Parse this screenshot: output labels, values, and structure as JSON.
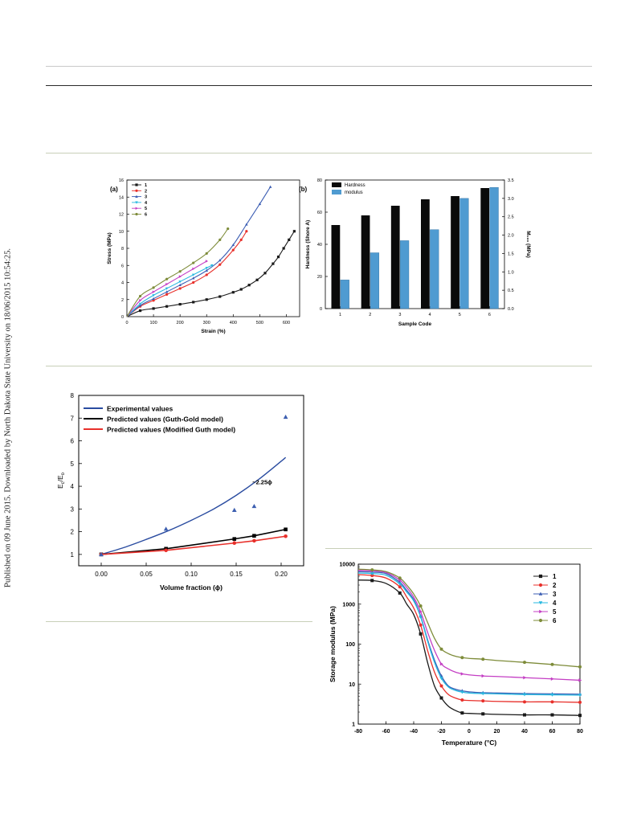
{
  "side_note": "Published on 09 June 2015. Downloaded by North Dakota State University on 18/06/2015 10:54:25.",
  "colors": {
    "s1": "#1a1a1a",
    "s2": "#e8302b",
    "s3": "#3b5db3",
    "s4": "#27b8e0",
    "s5": "#c43fc4",
    "s6": "#7e8c3a",
    "hardness": "#0a0a0a",
    "modulus": "#4f9bd1",
    "experimental": "#2a4ca0",
    "guth_gold": "#000000",
    "modified_guth": "#e8302b",
    "triangle": "#3d5fb0"
  },
  "chart_data": [
    {
      "id": "a",
      "type": "line",
      "panel_label": "(a)",
      "xlabel": "Strain (%)",
      "ylabel": "Stress (MPa)",
      "xlim": [
        0,
        650
      ],
      "ylim": [
        0,
        16
      ],
      "xticks": [
        0,
        100,
        200,
        300,
        400,
        500,
        600
      ],
      "yticks": [
        0,
        2,
        4,
        6,
        8,
        10,
        12,
        14,
        16
      ],
      "legend_position": "top-left",
      "series": [
        {
          "name": "1",
          "color_key": "s1",
          "marker": "square",
          "x": [
            0,
            50,
            100,
            150,
            200,
            250,
            300,
            350,
            400,
            430,
            460,
            490,
            520,
            550,
            570,
            590,
            610,
            630
          ],
          "y": [
            0,
            0.7,
            0.95,
            1.2,
            1.45,
            1.7,
            2.0,
            2.35,
            2.85,
            3.2,
            3.7,
            4.3,
            5.1,
            6.2,
            7.0,
            8.0,
            9.0,
            10.0
          ]
        },
        {
          "name": "2",
          "color_key": "s2",
          "marker": "circle",
          "x": [
            0,
            50,
            100,
            150,
            200,
            250,
            300,
            350,
            400,
            430,
            450
          ],
          "y": [
            0,
            1.2,
            1.9,
            2.6,
            3.3,
            4.0,
            4.9,
            6.1,
            7.8,
            9.0,
            10.0
          ]
        },
        {
          "name": "3",
          "color_key": "s3",
          "marker": "triangle-up",
          "x": [
            0,
            50,
            100,
            150,
            200,
            250,
            300,
            350,
            400,
            450,
            500,
            540
          ],
          "y": [
            0,
            1.3,
            2.1,
            2.9,
            3.7,
            4.5,
            5.4,
            6.6,
            8.4,
            10.8,
            13.2,
            15.2
          ]
        },
        {
          "name": "4",
          "color_key": "s4",
          "marker": "triangle-down",
          "x": [
            0,
            50,
            100,
            150,
            200,
            250,
            300,
            320
          ],
          "y": [
            0,
            1.5,
            2.5,
            3.3,
            4.1,
            4.9,
            5.7,
            6.0
          ]
        },
        {
          "name": "5",
          "color_key": "s5",
          "marker": "triangle-right",
          "x": [
            0,
            50,
            100,
            150,
            200,
            250,
            300
          ],
          "y": [
            0,
            1.9,
            2.9,
            3.8,
            4.7,
            5.6,
            6.5
          ]
        },
        {
          "name": "6",
          "color_key": "s6",
          "marker": "circle",
          "x": [
            0,
            50,
            100,
            150,
            200,
            250,
            300,
            350,
            380
          ],
          "y": [
            0,
            2.4,
            3.4,
            4.4,
            5.3,
            6.3,
            7.4,
            9.0,
            10.3
          ]
        }
      ]
    },
    {
      "id": "b",
      "type": "bar",
      "panel_label": "(b)",
      "xlabel": "Sample Code",
      "ylabel": "Hardness (Shore A)",
      "ylabel_right": "M₁₀₀ (MPa)",
      "categories": [
        "1",
        "2",
        "3",
        "4",
        "5",
        "6"
      ],
      "ylim": [
        0,
        80
      ],
      "ylim_right": [
        0,
        3.5
      ],
      "yticks": [
        0,
        20,
        40,
        60,
        80
      ],
      "yticks_right": [
        0.0,
        0.5,
        1.0,
        1.5,
        2.0,
        2.5,
        3.0,
        3.5
      ],
      "legend_position": "top-left",
      "series": [
        {
          "name": "Hardness",
          "color_key": "hardness",
          "axis": "left",
          "values": [
            52,
            58,
            64,
            68,
            70,
            75
          ]
        },
        {
          "name": "modulus",
          "color_key": "modulus",
          "axis": "right",
          "values": [
            0.78,
            1.52,
            1.85,
            2.15,
            3.0,
            3.3
          ]
        }
      ]
    },
    {
      "id": "c",
      "type": "line",
      "xlabel": "Volume fraction (ϕ)",
      "ylabel": "Ec/Eo",
      "ylabel_main": "E",
      "ylabel_sub1": "c",
      "ylabel_mid": "/E",
      "ylabel_sub2": "o",
      "xlim": [
        -0.025,
        0.225
      ],
      "ylim": [
        0.5,
        8
      ],
      "xticks": [
        0.0,
        0.05,
        0.1,
        0.15,
        0.2
      ],
      "xtick_labels": [
        "0.00",
        "0.05",
        "0.10",
        "0.15",
        "0.20"
      ],
      "yticks": [
        1,
        2,
        3,
        4,
        5,
        6,
        7,
        8
      ],
      "legend_position": "top-left",
      "annotation": "~2.25ϕ",
      "series": [
        {
          "name": "Experimental values",
          "color_key": "experimental",
          "kind": "curve",
          "x": [
            0,
            0.025,
            0.05,
            0.075,
            0.1,
            0.125,
            0.15,
            0.175,
            0.2,
            0.205
          ],
          "y": [
            1.0,
            1.3,
            1.66,
            2.05,
            2.5,
            3.0,
            3.6,
            4.3,
            5.1,
            5.27
          ]
        },
        {
          "name": "Predicted values (Guth-Gold model)",
          "color_key": "guth_gold",
          "marker": "square",
          "x": [
            0,
            0.072,
            0.148,
            0.17,
            0.205
          ],
          "y": [
            1.0,
            1.25,
            1.68,
            1.82,
            2.1
          ]
        },
        {
          "name": "Predicted values (Modified Guth model)",
          "color_key": "modified_guth",
          "marker": "circle",
          "x": [
            0,
            0.072,
            0.148,
            0.17,
            0.205
          ],
          "y": [
            1.0,
            1.18,
            1.5,
            1.6,
            1.8
          ]
        },
        {
          "name": "",
          "color_key": "triangle",
          "marker": "triangle-up",
          "kind": "points",
          "x": [
            0,
            0.072,
            0.148,
            0.17,
            0.205
          ],
          "y": [
            1.0,
            2.12,
            2.95,
            3.12,
            7.05
          ]
        }
      ]
    },
    {
      "id": "d",
      "type": "line",
      "xlabel": "Temperature (°C)",
      "ylabel": "Storage modulus  (MPa)",
      "xlim": [
        -80,
        80
      ],
      "ylim": [
        1,
        10000
      ],
      "yscale": "log",
      "xticks": [
        -80,
        -60,
        -40,
        -20,
        0,
        20,
        40,
        60,
        80
      ],
      "yticks": [
        1,
        10,
        100,
        1000,
        10000
      ],
      "legend_position": "top-right",
      "series": [
        {
          "name": "1",
          "color_key": "s1",
          "marker": "square",
          "x": [
            -80,
            -70,
            -60,
            -50,
            -45,
            -40,
            -35,
            -30,
            -25,
            -20,
            -15,
            -10,
            -5,
            0,
            10,
            20,
            40,
            60,
            80
          ],
          "y": [
            4000,
            3900,
            3300,
            1900,
            1000,
            550,
            180,
            35,
            9,
            4.5,
            2.8,
            2.2,
            1.9,
            1.85,
            1.8,
            1.75,
            1.7,
            1.7,
            1.65
          ]
        },
        {
          "name": "2",
          "color_key": "s2",
          "marker": "circle",
          "x": [
            -80,
            -70,
            -60,
            -50,
            -45,
            -40,
            -35,
            -30,
            -25,
            -20,
            -15,
            -10,
            -5,
            0,
            10,
            20,
            40,
            60,
            80
          ],
          "y": [
            5500,
            5200,
            4500,
            2700,
            1500,
            800,
            300,
            70,
            20,
            9,
            5.5,
            4.5,
            4.0,
            3.9,
            3.8,
            3.7,
            3.6,
            3.6,
            3.5
          ]
        },
        {
          "name": "3",
          "color_key": "s3",
          "marker": "triangle-up",
          "x": [
            -80,
            -70,
            -60,
            -50,
            -45,
            -40,
            -35,
            -30,
            -25,
            -20,
            -15,
            -10,
            -5,
            0,
            10,
            20,
            40,
            60,
            80
          ],
          "y": [
            6500,
            6300,
            5800,
            3500,
            2200,
            1300,
            500,
            130,
            40,
            16,
            9,
            7.5,
            6.8,
            6.4,
            6.1,
            6.0,
            5.8,
            5.7,
            5.6
          ]
        },
        {
          "name": "4",
          "color_key": "s4",
          "marker": "triangle-down",
          "x": [
            -80,
            -70,
            -60,
            -50,
            -45,
            -40,
            -35,
            -30,
            -25,
            -20,
            -15,
            -10,
            -5,
            0,
            10,
            20,
            40,
            60,
            80
          ],
          "y": [
            6000,
            5800,
            5300,
            3200,
            2000,
            1200,
            480,
            120,
            35,
            14,
            8.5,
            7,
            6.3,
            6.0,
            5.8,
            5.7,
            5.5,
            5.4,
            5.3
          ]
        },
        {
          "name": "5",
          "color_key": "s5",
          "marker": "triangle-right",
          "x": [
            -80,
            -70,
            -60,
            -50,
            -45,
            -40,
            -35,
            -30,
            -25,
            -20,
            -15,
            -10,
            -5,
            0,
            10,
            20,
            40,
            60,
            80
          ],
          "y": [
            7000,
            6800,
            6200,
            4000,
            2600,
            1500,
            650,
            200,
            70,
            32,
            24,
            20,
            18,
            17,
            16,
            15.5,
            14.5,
            13.5,
            12.5
          ]
        },
        {
          "name": "6",
          "color_key": "s6",
          "marker": "circle",
          "x": [
            -80,
            -70,
            -60,
            -50,
            -45,
            -40,
            -35,
            -30,
            -25,
            -20,
            -15,
            -10,
            -5,
            0,
            10,
            20,
            40,
            60,
            80
          ],
          "y": [
            7500,
            7200,
            6500,
            4500,
            3000,
            1800,
            900,
            350,
            140,
            75,
            58,
            50,
            46,
            44,
            42,
            39,
            35,
            31,
            27
          ]
        }
      ]
    }
  ]
}
